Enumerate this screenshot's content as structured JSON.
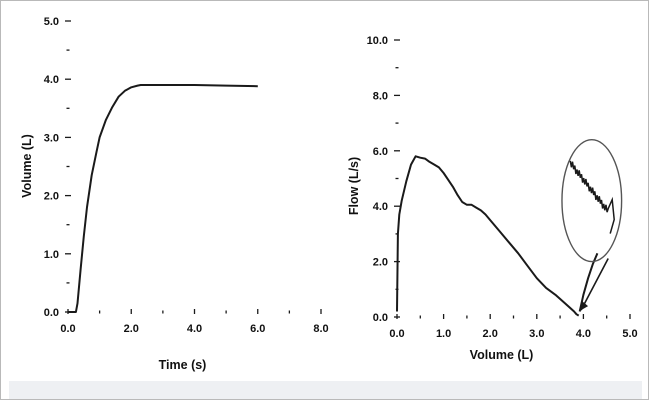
{
  "colors": {
    "line": "#1a1a1a",
    "circle": "#555555"
  },
  "chart_data": [
    {
      "type": "line",
      "xlabel": "Time (s)",
      "ylabel": "Volume (L)",
      "xlim": [
        0,
        8
      ],
      "ylim": [
        0,
        5
      ],
      "x_ticks": [
        0,
        2,
        4,
        6,
        8
      ],
      "x_tick_labels": [
        "0.0",
        "2.0",
        "4.0",
        "6.0",
        "8.0"
      ],
      "y_ticks": [
        0,
        1,
        2,
        3,
        4,
        5
      ],
      "y_tick_labels": [
        "0.0",
        "1.0",
        "2.0",
        "3.0",
        "4.0",
        "5.0"
      ],
      "grid": false,
      "series": [
        {
          "x": [
            0.0,
            0.25,
            0.3,
            0.4,
            0.5,
            0.6,
            0.75,
            0.9,
            1.0,
            1.2,
            1.4,
            1.6,
            1.8,
            2.0,
            2.2,
            2.3,
            2.5,
            3.0,
            4.0,
            5.0,
            6.0
          ],
          "y": [
            0.0,
            0.0,
            0.15,
            0.75,
            1.3,
            1.8,
            2.35,
            2.75,
            3.0,
            3.3,
            3.52,
            3.7,
            3.8,
            3.86,
            3.89,
            3.9,
            3.9,
            3.9,
            3.9,
            3.89,
            3.88
          ]
        }
      ]
    },
    {
      "type": "line",
      "xlabel": "Volume (L)",
      "ylabel": "Flow (L/s)",
      "xlim": [
        0,
        5
      ],
      "ylim": [
        0,
        10
      ],
      "x_ticks": [
        0,
        1,
        2,
        3,
        4,
        5
      ],
      "x_tick_labels": [
        "0.0",
        "1.0",
        "2.0",
        "3.0",
        "4.0",
        "5.0"
      ],
      "y_ticks": [
        0,
        2,
        4,
        6,
        8,
        10
      ],
      "y_tick_labels": [
        "0.0",
        "2.0",
        "4.0",
        "6.0",
        "8.0",
        "10.0"
      ],
      "grid": false,
      "series": [
        {
          "x": [
            0.0,
            0.02,
            0.05,
            0.1,
            0.2,
            0.3,
            0.4,
            0.5,
            0.6,
            0.7,
            0.8,
            0.9,
            1.0,
            1.1,
            1.2,
            1.3,
            1.4,
            1.5,
            1.6,
            1.7,
            1.8,
            1.9,
            2.0,
            2.2,
            2.4,
            2.6,
            2.8,
            3.0,
            3.2,
            3.4,
            3.6,
            3.7,
            3.8,
            3.85,
            3.9
          ],
          "y": [
            0.2,
            3.0,
            3.7,
            4.2,
            4.9,
            5.5,
            5.8,
            5.75,
            5.72,
            5.6,
            5.5,
            5.4,
            5.2,
            4.95,
            4.7,
            4.4,
            4.15,
            4.05,
            4.05,
            3.95,
            3.85,
            3.7,
            3.5,
            3.1,
            2.7,
            2.3,
            1.85,
            1.4,
            1.05,
            0.8,
            0.5,
            0.35,
            0.2,
            0.1,
            0.05
          ]
        },
        {
          "x": [
            3.92,
            4.0,
            4.1,
            4.2,
            4.3
          ],
          "y": [
            0.2,
            0.8,
            1.4,
            1.9,
            2.3
          ]
        }
      ],
      "annotations": [
        {
          "kind": "circle-magnifier",
          "center": [
            4.18,
            4.2
          ],
          "radius_x": 0.64,
          "radius_y": 2.2
        }
      ]
    }
  ]
}
